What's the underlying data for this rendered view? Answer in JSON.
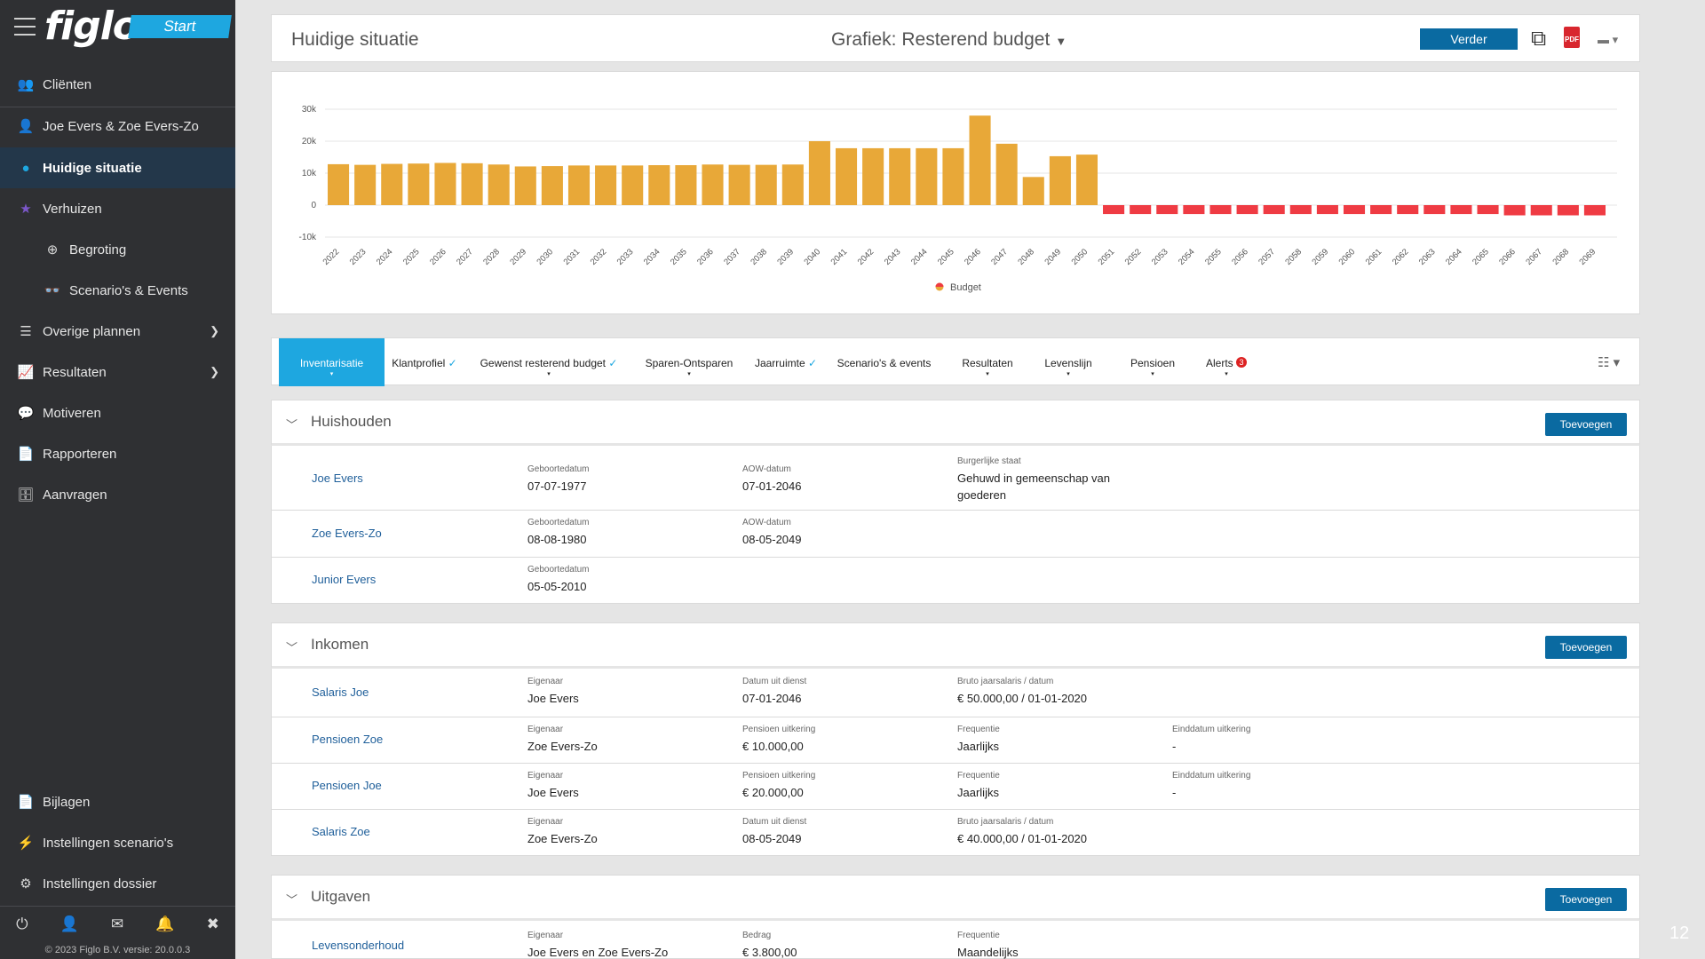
{
  "brand": {
    "logo": "figlo",
    "start": "Start"
  },
  "sidebar": {
    "items": [
      {
        "label": "Cliënten"
      },
      {
        "label": "Joe Evers & Zoe Evers-Zo"
      },
      {
        "label": "Huidige situatie"
      },
      {
        "label": "Verhuizen"
      },
      {
        "label": "Begroting"
      },
      {
        "label": "Scenario's & Events"
      },
      {
        "label": "Overige plannen"
      },
      {
        "label": "Resultaten"
      },
      {
        "label": "Motiveren"
      },
      {
        "label": "Rapporteren"
      },
      {
        "label": "Aanvragen"
      },
      {
        "label": "Bijlagen"
      },
      {
        "label": "Instellingen scenario's"
      },
      {
        "label": "Instellingen dossier"
      }
    ],
    "copyright": "© 2023 Figlo B.V. versie: 20.0.0.3"
  },
  "header": {
    "title": "Huidige situatie",
    "graph_select": "Grafiek:  Resterend budget",
    "verder": "Verder",
    "pdf": "PDF"
  },
  "chart_data": {
    "type": "bar",
    "categories": [
      "2022",
      "2023",
      "2024",
      "2025",
      "2026",
      "2027",
      "2028",
      "2029",
      "2030",
      "2031",
      "2032",
      "2033",
      "2034",
      "2035",
      "2036",
      "2037",
      "2038",
      "2039",
      "2040",
      "2041",
      "2042",
      "2043",
      "2044",
      "2045",
      "2046",
      "2047",
      "2048",
      "2049",
      "2050",
      "2051",
      "2052",
      "2053",
      "2054",
      "2055",
      "2056",
      "2057",
      "2058",
      "2059",
      "2060",
      "2061",
      "2062",
      "2063",
      "2064",
      "2065",
      "2066",
      "2067",
      "2068",
      "2069"
    ],
    "series": [
      {
        "name": "Budget",
        "values": [
          12800,
          12600,
          12900,
          13000,
          13200,
          13100,
          12700,
          12100,
          12200,
          12400,
          12400,
          12400,
          12500,
          12500,
          12700,
          12600,
          12600,
          12700,
          20000,
          17800,
          17800,
          17800,
          17800,
          17800,
          28000,
          19200,
          8800,
          15300,
          15800,
          -2800,
          -2800,
          -2800,
          -2800,
          -2800,
          -2800,
          -2800,
          -2800,
          -2800,
          -2800,
          -2800,
          -2800,
          -2800,
          -2800,
          -2800,
          -3200,
          -3200,
          -3200,
          -3200
        ]
      }
    ],
    "ytick_labels": [
      "30k",
      "20k",
      "10k",
      "0",
      "-10k"
    ],
    "ylim": [
      -10000,
      30000
    ],
    "grid": true,
    "legend": "bottom-center",
    "colors": {
      "positive": "#e8a838",
      "negative": "#ef3b43"
    }
  },
  "tabs": [
    {
      "label": "Inventarisatie",
      "check": "",
      "dropdown": "▾"
    },
    {
      "label": "Klantprofiel",
      "check": "✓",
      "dropdown": ""
    },
    {
      "label": "Gewenst resterend budget",
      "check": "✓",
      "dropdown": "▾"
    },
    {
      "label": "Sparen-Ontsparen",
      "check": "",
      "dropdown": "▾"
    },
    {
      "label": "Jaarruimte",
      "check": "✓",
      "dropdown": ""
    },
    {
      "label": "Scenario's & events",
      "check": "",
      "dropdown": ""
    },
    {
      "label": "Resultaten",
      "check": "",
      "dropdown": "▾"
    },
    {
      "label": "Levenslijn",
      "check": "",
      "dropdown": "▾"
    },
    {
      "label": "Pensioen",
      "check": "",
      "dropdown": "▾"
    },
    {
      "label": "Alerts",
      "check": "",
      "dropdown": "▾",
      "badge": "3"
    }
  ],
  "sections": {
    "huishouden": {
      "title": "Huishouden",
      "add": "Toevoegen",
      "rows": [
        {
          "name": "Joe Evers",
          "f1l": "Geboortedatum",
          "f1v": "07-07-1977",
          "f2l": "AOW-datum",
          "f2v": "07-01-2046",
          "f3l": "Burgerlijke staat",
          "f3v": "Gehuwd in gemeenschap van goederen"
        },
        {
          "name": "Zoe Evers-Zo",
          "f1l": "Geboortedatum",
          "f1v": "08-08-1980",
          "f2l": "AOW-datum",
          "f2v": "08-05-2049"
        },
        {
          "name": "Junior Evers",
          "f1l": "Geboortedatum",
          "f1v": "05-05-2010"
        }
      ]
    },
    "inkomen": {
      "title": "Inkomen",
      "add": "Toevoegen",
      "rows": [
        {
          "name": "Salaris Joe",
          "f1l": "Eigenaar",
          "f1v": "Joe Evers",
          "f2l": "Datum uit dienst",
          "f2v": "07-01-2046",
          "f3l": "Bruto jaarsalaris / datum",
          "f3v": "€ 50.000,00 / 01-01-2020"
        },
        {
          "name": "Pensioen Zoe",
          "f1l": "Eigenaar",
          "f1v": "Zoe Evers-Zo",
          "f2l": "Pensioen uitkering",
          "f2v": "€ 10.000,00",
          "f3l": "Frequentie",
          "f3v": "Jaarlijks",
          "f4l": "Einddatum uitkering",
          "f4v": "-"
        },
        {
          "name": "Pensioen Joe",
          "f1l": "Eigenaar",
          "f1v": "Joe Evers",
          "f2l": "Pensioen uitkering",
          "f2v": "€ 20.000,00",
          "f3l": "Frequentie",
          "f3v": "Jaarlijks",
          "f4l": "Einddatum uitkering",
          "f4v": "-"
        },
        {
          "name": "Salaris Zoe",
          "f1l": "Eigenaar",
          "f1v": "Zoe Evers-Zo",
          "f2l": "Datum uit dienst",
          "f2v": "08-05-2049",
          "f3l": "Bruto jaarsalaris / datum",
          "f3v": "€ 40.000,00 / 01-01-2020"
        }
      ]
    },
    "uitgaven": {
      "title": "Uitgaven",
      "add": "Toevoegen",
      "rows": [
        {
          "name": "Levensonderhoud",
          "f1l": "Eigenaar",
          "f1v": "Joe Evers en Zoe Evers-Zo",
          "f2l": "Bedrag",
          "f2v": "€ 3.800,00",
          "f3l": "Frequentie",
          "f3v": "Maandelijks"
        }
      ]
    }
  },
  "page_number": "12"
}
